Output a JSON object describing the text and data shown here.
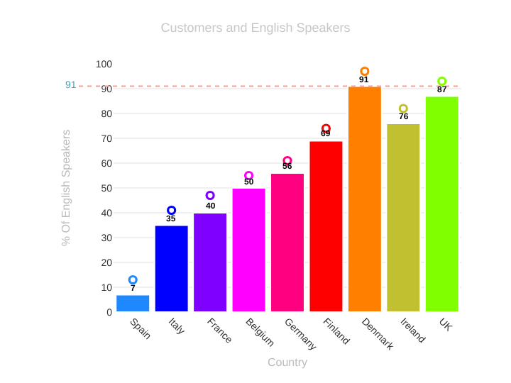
{
  "chart_data": {
    "type": "bar",
    "title": "Customers and English Speakers",
    "xlabel": "Country",
    "ylabel": "% Of English Speakers",
    "categories": [
      "Spain",
      "Italy",
      "France",
      "Belgium",
      "Germany",
      "Finland",
      "Denmark",
      "Ireland",
      "UK"
    ],
    "series": [
      {
        "values": [
          7,
          35,
          40,
          50,
          56,
          69,
          91,
          76,
          87
        ],
        "value_labels": [
          "7",
          "35",
          "40",
          "50",
          "56",
          "69",
          "91",
          "76",
          "87"
        ],
        "colors": [
          "#1e88ff",
          "#0000ff",
          "#8000ff",
          "#ff00ff",
          "#ff0080",
          "#ff0000",
          "#ff8000",
          "#c0c030",
          "#80ff00"
        ]
      },
      {
        "type": "scatter",
        "marker": "circle",
        "values": [
          13,
          41,
          47,
          55,
          61,
          74,
          97,
          82,
          93
        ],
        "colors": [
          "#1e88ff",
          "#0000ff",
          "#8000ff",
          "#ff00ff",
          "#ff0080",
          "#ff0000",
          "#ff8000",
          "#c0c030",
          "#80ff00"
        ]
      }
    ],
    "ylim": [
      0,
      100
    ],
    "yticks": [
      0,
      10,
      20,
      30,
      40,
      50,
      60,
      70,
      80,
      90,
      100
    ],
    "grid": "y",
    "ref_lines": [
      {
        "axis": "y",
        "value": 91,
        "label": "91",
        "color": "#ff9999",
        "line_style": "dotted"
      }
    ]
  }
}
